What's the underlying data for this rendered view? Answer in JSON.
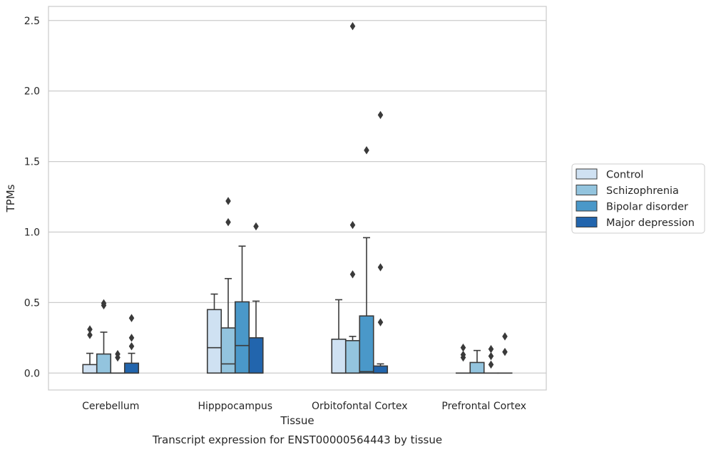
{
  "chart_data": {
    "type": "boxplot",
    "caption": "Transcript expression for ENST00000564443 by tissue",
    "xlabel": "Tissue",
    "ylabel": "TPMs",
    "ylim": [
      -0.12,
      2.6
    ],
    "yticks": [
      0.0,
      0.5,
      1.0,
      1.5,
      2.0,
      2.5
    ],
    "ytick_labels": [
      "0.0",
      "0.5",
      "1.0",
      "1.5",
      "2.0",
      "2.5"
    ],
    "grid": "horizontal",
    "legend_position": "right",
    "categories": [
      "Cerebellum",
      "Hipppocampus",
      "Orbitofontal Cortex",
      "Prefrontal Cortex"
    ],
    "series": [
      {
        "name": "Control",
        "color": "#cfe1f2",
        "boxes": [
          {
            "q1": 0.0,
            "median": 0.0,
            "q3": 0.06,
            "whisker_low": 0.0,
            "whisker_high": 0.14,
            "outliers": [
              0.27,
              0.31
            ]
          },
          {
            "q1": 0.0,
            "median": 0.18,
            "q3": 0.45,
            "whisker_low": 0.0,
            "whisker_high": 0.56,
            "outliers": []
          },
          {
            "q1": 0.0,
            "median": 0.0,
            "q3": 0.24,
            "whisker_low": 0.0,
            "whisker_high": 0.52,
            "outliers": []
          },
          {
            "q1": 0.0,
            "median": 0.0,
            "q3": 0.0,
            "whisker_low": 0.0,
            "whisker_high": 0.0,
            "outliers": [
              0.11,
              0.13,
              0.18
            ]
          }
        ]
      },
      {
        "name": "Schizophrenia",
        "color": "#93c4de",
        "boxes": [
          {
            "q1": 0.0,
            "median": 0.0,
            "q3": 0.135,
            "whisker_low": 0.0,
            "whisker_high": 0.29,
            "outliers": [
              0.48,
              0.495
            ]
          },
          {
            "q1": 0.0,
            "median": 0.065,
            "q3": 0.32,
            "whisker_low": 0.0,
            "whisker_high": 0.67,
            "outliers": [
              1.07,
              1.22
            ]
          },
          {
            "q1": 0.0,
            "median": 0.0,
            "q3": 0.23,
            "whisker_low": 0.0,
            "whisker_high": 0.26,
            "outliers": [
              0.7,
              1.05,
              2.46
            ]
          },
          {
            "q1": 0.0,
            "median": 0.0,
            "q3": 0.075,
            "whisker_low": 0.0,
            "whisker_high": 0.16,
            "outliers": []
          }
        ]
      },
      {
        "name": "Bipolar disorder",
        "color": "#4a98c9",
        "boxes": [
          {
            "q1": 0.0,
            "median": 0.0,
            "q3": 0.0,
            "whisker_low": 0.0,
            "whisker_high": 0.0,
            "outliers": [
              0.11,
              0.135
            ]
          },
          {
            "q1": 0.0,
            "median": 0.195,
            "q3": 0.505,
            "whisker_low": 0.0,
            "whisker_high": 0.9,
            "outliers": []
          },
          {
            "q1": 0.0,
            "median": 0.01,
            "q3": 0.405,
            "whisker_low": 0.0,
            "whisker_high": 0.96,
            "outliers": [
              1.58
            ]
          },
          {
            "q1": 0.0,
            "median": 0.0,
            "q3": 0.0,
            "whisker_low": 0.0,
            "whisker_high": 0.0,
            "outliers": [
              0.06,
              0.12,
              0.17
            ]
          }
        ]
      },
      {
        "name": "Major depression",
        "color": "#2265ad",
        "boxes": [
          {
            "q1": 0.0,
            "median": 0.0,
            "q3": 0.07,
            "whisker_low": 0.0,
            "whisker_high": 0.14,
            "outliers": [
              0.19,
              0.25,
              0.39
            ]
          },
          {
            "q1": 0.0,
            "median": 0.0,
            "q3": 0.25,
            "whisker_low": 0.0,
            "whisker_high": 0.51,
            "outliers": [
              1.04
            ]
          },
          {
            "q1": 0.0,
            "median": 0.0,
            "q3": 0.05,
            "whisker_low": 0.0,
            "whisker_high": 0.065,
            "outliers": [
              0.36,
              0.75,
              1.83
            ]
          },
          {
            "q1": 0.0,
            "median": 0.0,
            "q3": 0.0,
            "whisker_low": 0.0,
            "whisker_high": 0.0,
            "outliers": [
              0.15,
              0.26
            ]
          }
        ]
      }
    ]
  }
}
